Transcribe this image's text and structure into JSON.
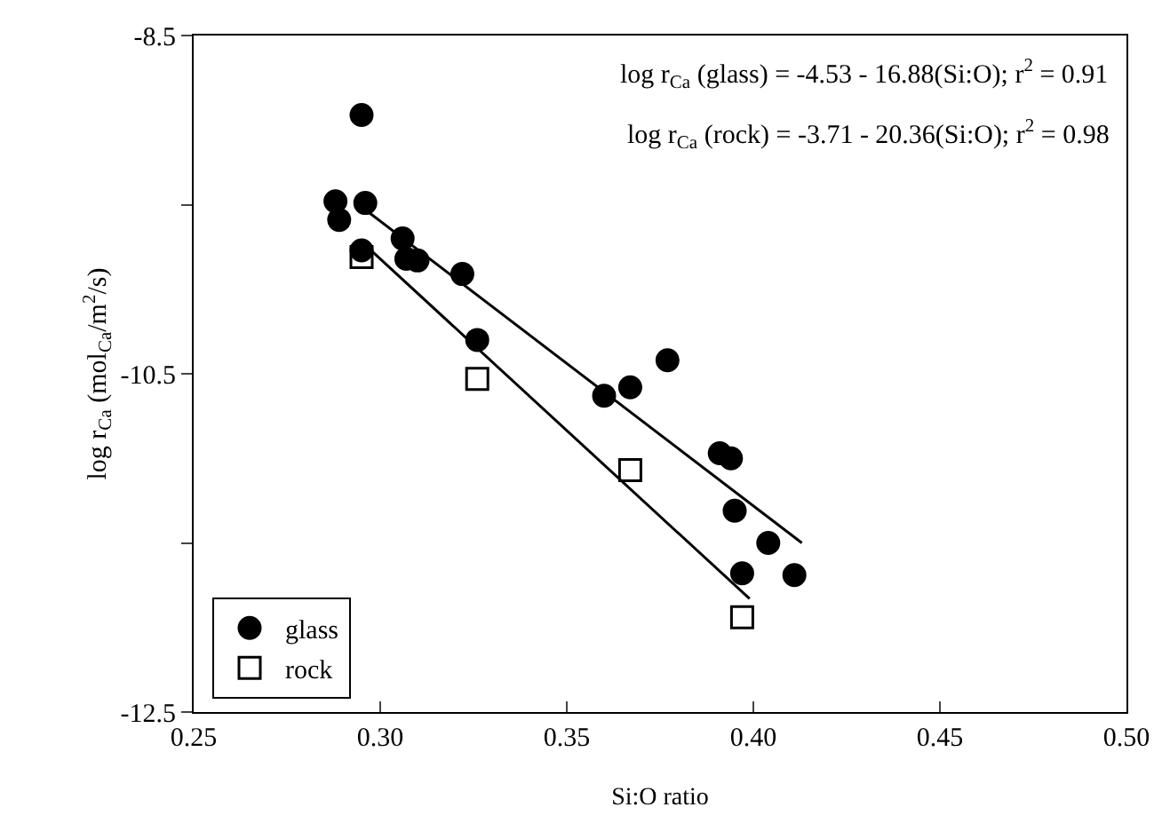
{
  "chart_data": {
    "type": "scatter",
    "xlabel": "Si:O ratio",
    "ylabel": "log r$_{Ca}$ (mol$_{Ca}$/m$^{2}$/s)",
    "xlim": [
      0.25,
      0.5
    ],
    "xticks": [
      0.25,
      {
        "value": 0.3,
        "label": "0.30"
      },
      0.35,
      {
        "value": 0.4,
        "label": "0.40"
      },
      0.45,
      {
        "value": 0.5,
        "label": "0.50"
      }
    ],
    "ylim": [
      -12.5,
      -8.5
    ],
    "yticks": [
      -8.5,
      {
        "value": -9.5,
        "label": null
      },
      -10.5,
      {
        "value": -11.5,
        "label": null
      },
      -12.5
    ],
    "grid": false,
    "legend": "bottom left",
    "annotations": [
      "log r$_{Ca}$ (glass) = -4.53 - 16.88(Si:O); r$^{2}$ = 0.91",
      "log r$_{Ca}$ (rock) = -3.71 - 20.36(Si:O); r$^{2}$ = 0.98"
    ],
    "series": [
      {
        "name": "glass",
        "color": "#000000",
        "marker": "circle",
        "x": [
          0.295,
          0.288,
          0.289,
          0.296,
          0.295,
          0.306,
          0.307,
          0.31,
          0.322,
          0.326,
          0.36,
          0.367,
          0.377,
          0.391,
          0.394,
          0.395,
          0.404,
          0.397,
          0.411
        ],
        "values": [
          -8.97,
          -9.48,
          -9.59,
          -9.49,
          -9.77,
          -9.7,
          -9.82,
          -9.83,
          -9.91,
          -10.3,
          -10.63,
          -10.58,
          -10.42,
          -10.97,
          -11.0,
          -11.31,
          -11.5,
          -11.68,
          -11.69
        ]
      },
      {
        "name": "rock",
        "color": "#000000",
        "marker": "square",
        "x": [
          0.295,
          0.326,
          0.367,
          0.397
        ],
        "values": [
          -9.81,
          -10.53,
          -11.07,
          -11.94
        ]
      },
      {
        "type": "line",
        "color": "#000000",
        "line_style": "solid",
        "x": [
          0.296,
          0.413
        ],
        "values": [
          -9.53,
          -11.5
        ]
      },
      {
        "type": "line",
        "color": "#000000",
        "line_style": "solid",
        "x": [
          0.296,
          0.399
        ],
        "values": [
          -9.74,
          -11.83
        ]
      }
    ]
  }
}
